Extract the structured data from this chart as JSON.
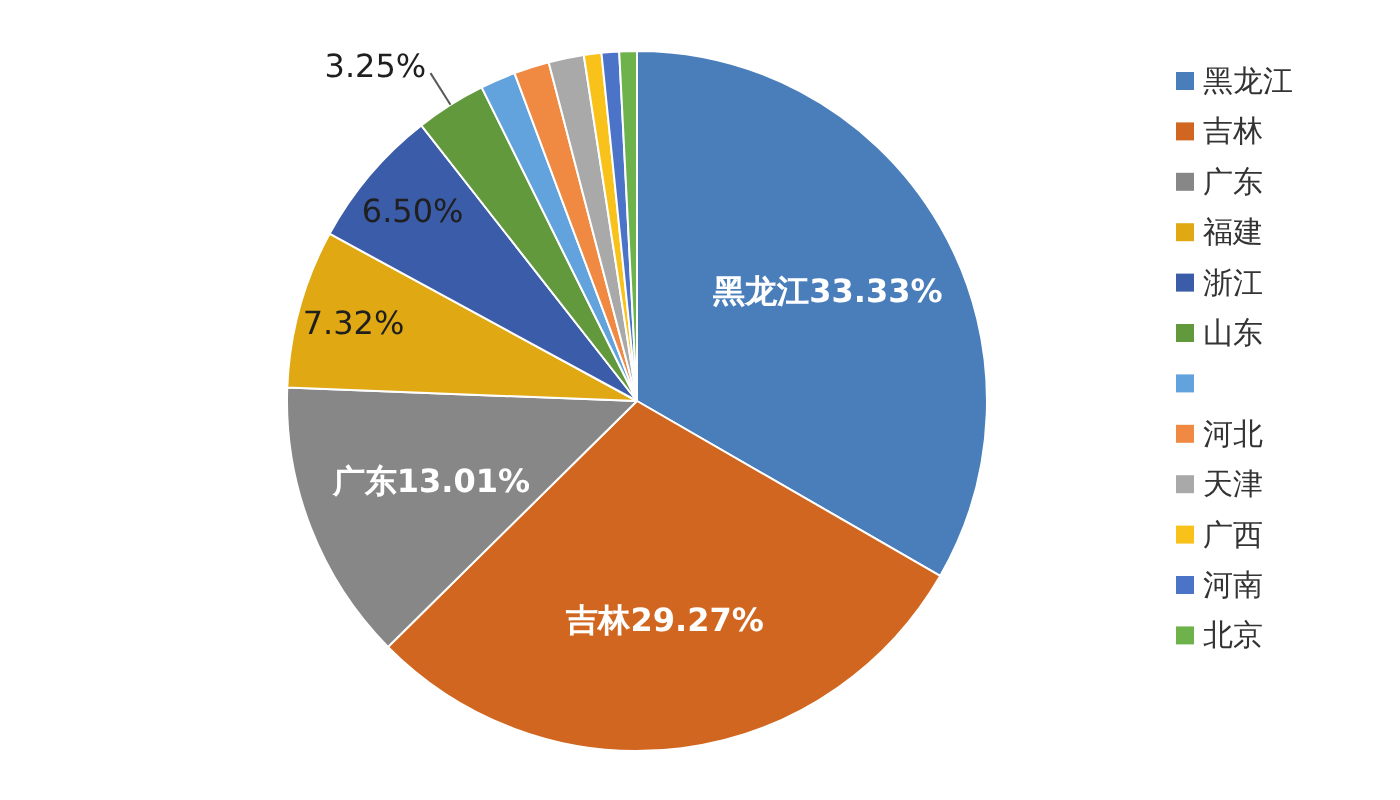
{
  "chart_data": {
    "type": "pie",
    "categories": [
      "黑龙江",
      "吉林",
      "广东",
      "福建",
      "浙江",
      "山东",
      null,
      "河北",
      "天津",
      "广西",
      "河南",
      "北京"
    ],
    "values": [
      33.33,
      29.27,
      13.01,
      7.32,
      6.5,
      3.25,
      1.63,
      1.63,
      1.63,
      0.81,
      0.81,
      0.81
    ],
    "colors": [
      "#4a7ebb",
      "#d0661f",
      "#878787",
      "#e0a914",
      "#3b5ca8",
      "#62993d",
      "#62a2dd",
      "#f08a43",
      "#a9a9a9",
      "#f8c21a",
      "#4b73c8",
      "#6db24a"
    ],
    "value_labels": [
      "黑龙江33.33%",
      "吉林29.27%",
      "广东13.01%",
      "7.32%",
      "6.50%",
      "3.25%",
      null,
      null,
      null,
      null,
      null,
      null
    ],
    "legend": "right"
  }
}
